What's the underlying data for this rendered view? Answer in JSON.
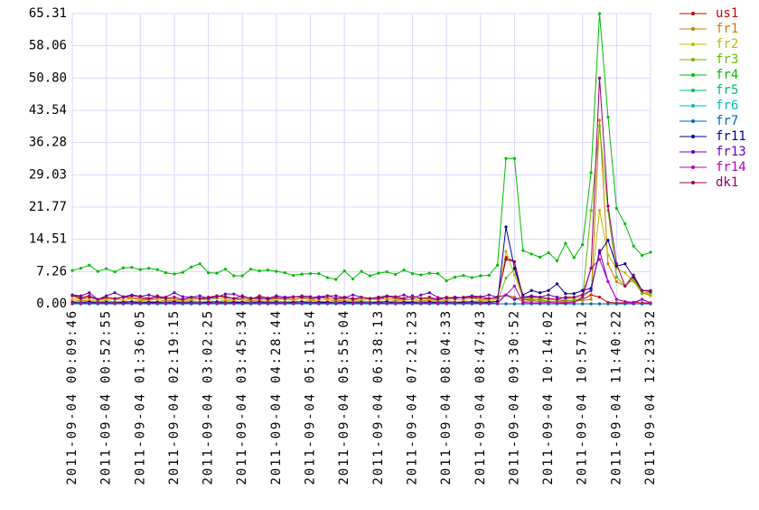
{
  "chart_data": {
    "type": "line",
    "legend": "right",
    "grid": true,
    "grid_color": "#d8d8ff",
    "x": [
      "2011-09-04 00:09:46",
      "2011-09-04 00:20:33",
      "2011-09-04 00:31:21",
      "2011-09-04 00:42:08",
      "2011-09-04 00:52:55",
      "2011-09-04 01:03:42",
      "2011-09-04 01:14:30",
      "2011-09-04 01:25:17",
      "2011-09-04 01:36:05",
      "2011-09-04 01:46:52",
      "2011-09-04 01:57:40",
      "2011-09-04 02:08:27",
      "2011-09-04 02:19:15",
      "2011-09-04 02:30:02",
      "2011-09-04 02:40:50",
      "2011-09-04 02:51:37",
      "2011-09-04 03:02:25",
      "2011-09-04 03:13:12",
      "2011-09-04 03:24:00",
      "2011-09-04 03:34:47",
      "2011-09-04 03:45:34",
      "2011-09-04 03:56:21",
      "2011-09-04 04:07:09",
      "2011-09-04 04:17:56",
      "2011-09-04 04:28:44",
      "2011-09-04 04:39:31",
      "2011-09-04 04:50:19",
      "2011-09-04 05:01:06",
      "2011-09-04 05:11:54",
      "2011-09-04 05:22:41",
      "2011-09-04 05:33:29",
      "2011-09-04 05:44:16",
      "2011-09-04 05:55:04",
      "2011-09-04 06:05:51",
      "2011-09-04 06:16:39",
      "2011-09-04 06:27:26",
      "2011-09-04 06:38:13",
      "2011-09-04 06:49:00",
      "2011-09-04 06:59:48",
      "2011-09-04 07:10:35",
      "2011-09-04 07:21:23",
      "2011-09-04 07:32:10",
      "2011-09-04 07:42:58",
      "2011-09-04 07:53:45",
      "2011-09-04 08:04:33",
      "2011-09-04 08:15:20",
      "2011-09-04 08:26:08",
      "2011-09-04 08:36:55",
      "2011-09-04 08:47:43",
      "2011-09-04 08:58:30",
      "2011-09-04 09:09:18",
      "2011-09-04 09:20:05",
      "2011-09-04 09:30:52",
      "2011-09-04 09:41:39",
      "2011-09-04 09:52:27",
      "2011-09-04 10:03:14",
      "2011-09-04 10:14:02",
      "2011-09-04 10:24:49",
      "2011-09-04 10:35:37",
      "2011-09-04 10:46:24",
      "2011-09-04 10:57:12",
      "2011-09-04 11:07:59",
      "2011-09-04 11:18:47",
      "2011-09-04 11:29:34",
      "2011-09-04 11:40:22",
      "2011-09-04 11:51:09",
      "2011-09-04 12:01:57",
      "2011-09-04 12:12:44",
      "2011-09-04 12:23:32"
    ],
    "xlim": [
      "2011-09-04 00:09:46",
      "2011-09-04 12:23:32"
    ],
    "xticks": [
      "2011-09-04 00:09:46",
      "2011-09-04 00:52:55",
      "2011-09-04 01:36:05",
      "2011-09-04 02:19:15",
      "2011-09-04 03:02:25",
      "2011-09-04 03:45:34",
      "2011-09-04 04:28:44",
      "2011-09-04 05:11:54",
      "2011-09-04 05:55:04",
      "2011-09-04 06:38:13",
      "2011-09-04 07:21:23",
      "2011-09-04 08:04:33",
      "2011-09-04 08:47:43",
      "2011-09-04 09:30:52",
      "2011-09-04 10:14:02",
      "2011-09-04 10:57:12",
      "2011-09-04 11:40:22",
      "2011-09-04 12:23:32"
    ],
    "ylim": [
      0,
      65.31
    ],
    "yticks": [
      {
        "value": 0,
        "label": "0.00"
      },
      7.26,
      14.51,
      21.77,
      29.03,
      36.28,
      43.54,
      {
        "value": 50.8,
        "label": "50.80"
      },
      58.06,
      65.31
    ],
    "series": [
      {
        "name": "us1",
        "color": "#cc0000",
        "values": [
          2.0,
          1.5,
          1.8,
          1.0,
          1.2,
          1.0,
          1.5,
          1.3,
          1.2,
          1.0,
          1.4,
          1.2,
          1.0,
          0.9,
          1.1,
          1.0,
          1.3,
          1.8,
          1.4,
          1.2,
          1.1,
          1.0,
          1.8,
          1.3,
          1.2,
          1.0,
          1.0,
          1.3,
          1.0,
          1.5,
          1.2,
          1.0,
          1.3,
          1.2,
          1.0,
          1.2,
          1.5,
          1.0,
          1.3,
          1.0,
          1.0,
          1.2,
          1.1,
          1.0,
          1.0,
          1.5,
          1.4,
          1.6,
          1.0,
          1.2,
          1.3,
          10.5,
          9.5,
          1.0,
          0.8,
          1.0,
          0.5,
          0.5,
          0.8,
          0.6,
          1.0,
          2.0,
          1.5,
          0.3,
          0.2,
          0.2,
          0.3,
          0.2,
          0.2
        ]
      },
      {
        "name": "fr1",
        "color": "#cc7a00",
        "values": [
          0.5,
          0.8,
          0.6,
          0.5,
          0.7,
          0.4,
          0.6,
          0.5,
          0.7,
          0.5,
          0.5,
          0.8,
          0.6,
          0.5,
          0.7,
          0.4,
          0.6,
          0.5,
          0.7,
          0.5,
          0.5,
          0.8,
          0.6,
          0.5,
          0.7,
          0.4,
          0.6,
          0.5,
          0.7,
          0.5,
          0.5,
          0.8,
          0.6,
          0.5,
          0.7,
          0.4,
          0.6,
          0.5,
          0.7,
          0.5,
          0.5,
          0.8,
          0.6,
          0.5,
          0.7,
          0.4,
          0.6,
          0.5,
          0.7,
          0.5,
          0.6,
          2.0,
          1.5,
          0.5,
          0.6,
          0.5,
          0.4,
          0.5,
          0.3,
          0.5,
          0.8,
          1.0,
          41.3,
          9.0,
          5.0,
          4.0,
          6.0,
          2.5,
          2.5
        ]
      },
      {
        "name": "fr2",
        "color": "#bbbb00",
        "values": [
          1.0,
          1.2,
          0.9,
          0.8,
          1.1,
          1.0,
          0.9,
          1.2,
          1.0,
          0.8,
          1.0,
          1.2,
          0.9,
          0.8,
          1.1,
          1.0,
          0.9,
          1.2,
          1.0,
          0.8,
          1.0,
          1.2,
          0.9,
          0.8,
          1.1,
          1.0,
          0.9,
          1.2,
          1.0,
          0.8,
          1.0,
          1.2,
          0.9,
          0.8,
          1.1,
          1.0,
          0.9,
          1.2,
          1.0,
          0.8,
          1.0,
          1.2,
          0.9,
          0.8,
          1.1,
          1.0,
          0.9,
          1.2,
          1.0,
          0.8,
          1.0,
          11.8,
          6.5,
          1.5,
          1.2,
          1.3,
          1.0,
          0.9,
          1.0,
          1.2,
          1.5,
          3.0,
          21.0,
          11.0,
          8.0,
          7.0,
          5.0,
          2.5,
          1.8
        ]
      },
      {
        "name": "fr3",
        "color": "#66bb00",
        "values": [
          0.3,
          0.5,
          0.4,
          0.3,
          0.6,
          0.4,
          0.3,
          0.5,
          0.4,
          0.3,
          0.3,
          0.5,
          0.4,
          0.3,
          0.6,
          0.4,
          0.3,
          0.5,
          0.4,
          0.3,
          0.3,
          0.5,
          0.4,
          0.3,
          0.6,
          0.4,
          0.3,
          0.5,
          0.4,
          0.3,
          0.3,
          0.5,
          0.4,
          0.3,
          0.6,
          0.4,
          0.3,
          0.5,
          0.4,
          0.3,
          0.3,
          0.5,
          0.4,
          0.3,
          0.6,
          0.4,
          0.3,
          0.5,
          0.4,
          0.3,
          0.5,
          5.8,
          7.8,
          1.3,
          1.0,
          0.8,
          0.6,
          0.5,
          0.6,
          0.8,
          1.2,
          21.0,
          40.0,
          21.0,
          6.0,
          4.0,
          5.5,
          2.3,
          2.2
        ]
      },
      {
        "name": "fr4",
        "color": "#00bb00",
        "values": [
          7.5,
          8.0,
          8.7,
          7.3,
          7.9,
          7.2,
          8.1,
          8.2,
          7.7,
          8.0,
          7.7,
          7.0,
          6.7,
          7.1,
          8.3,
          9.0,
          7.0,
          6.9,
          7.8,
          6.3,
          6.3,
          7.8,
          7.4,
          7.6,
          7.3,
          7.0,
          6.4,
          6.7,
          6.8,
          6.8,
          5.9,
          5.5,
          7.4,
          5.6,
          7.3,
          6.3,
          6.9,
          7.2,
          6.6,
          7.6,
          6.8,
          6.5,
          6.9,
          6.8,
          5.2,
          6.0,
          6.4,
          5.9,
          6.3,
          6.4,
          8.7,
          32.7,
          32.7,
          12.0,
          11.2,
          10.5,
          11.5,
          9.7,
          13.6,
          10.4,
          13.3,
          29.5,
          65.3,
          42.0,
          21.5,
          18.0,
          13.0,
          10.9,
          11.6
        ]
      },
      {
        "name": "fr5",
        "color": "#00bb66",
        "values": [
          0,
          0,
          0,
          0,
          0,
          0,
          0,
          0,
          0,
          0,
          0,
          0,
          0,
          0,
          0,
          0,
          0,
          0,
          0,
          0,
          0,
          0,
          0,
          0,
          0,
          0,
          0,
          0,
          0,
          0,
          0,
          0,
          0,
          0,
          0,
          0,
          0,
          0,
          0,
          0,
          0,
          0,
          0,
          0,
          0,
          0,
          0,
          0,
          0,
          0,
          0,
          0,
          0,
          0,
          0,
          0,
          0,
          0,
          0,
          0,
          0,
          0,
          0,
          0,
          0,
          0,
          0,
          0,
          0
        ]
      },
      {
        "name": "fr6",
        "color": "#00bbbb",
        "values": [
          0,
          0,
          0,
          0,
          0,
          0,
          0,
          0,
          0,
          0,
          0,
          0,
          0,
          0,
          0,
          0,
          0,
          0,
          0,
          0,
          0,
          0,
          0,
          0,
          0,
          0,
          0,
          0,
          0,
          0,
          0,
          0,
          0,
          0,
          0,
          0,
          0,
          0,
          0,
          0,
          0,
          0,
          0,
          0,
          0,
          0,
          0,
          0,
          0,
          0,
          0,
          0,
          0,
          0,
          0,
          0,
          0,
          0,
          0,
          0,
          0,
          0,
          0,
          0,
          0,
          0,
          0,
          0,
          0
        ]
      },
      {
        "name": "fr7",
        "color": "#0066bb",
        "values": [
          0,
          0,
          0,
          0,
          0,
          0,
          0,
          0,
          0,
          0,
          0,
          0,
          0,
          0,
          0,
          0,
          0,
          0,
          0,
          0,
          0,
          0,
          0,
          0,
          0,
          0,
          0,
          0,
          0,
          0,
          0,
          0,
          0,
          0,
          0,
          0,
          0,
          0,
          0,
          0,
          0,
          0,
          0,
          0,
          0,
          0,
          0,
          0,
          0,
          0,
          0,
          0,
          0,
          0,
          0,
          0,
          0,
          0,
          0,
          0,
          0,
          0,
          0,
          0,
          0,
          0,
          0,
          0,
          0
        ]
      },
      {
        "name": "fr11",
        "color": "#000099",
        "values": [
          0.3,
          0.2,
          0.4,
          0.2,
          0.3,
          0.2,
          0.3,
          0.4,
          0.2,
          0.3,
          0.3,
          0.2,
          0.4,
          0.2,
          0.3,
          0.2,
          0.3,
          0.4,
          0.2,
          0.3,
          0.3,
          0.2,
          0.4,
          0.2,
          0.3,
          0.2,
          0.3,
          0.4,
          0.2,
          0.3,
          0.3,
          0.2,
          0.4,
          0.2,
          0.3,
          0.2,
          0.3,
          0.4,
          0.2,
          0.3,
          0.3,
          0.2,
          0.4,
          0.2,
          0.3,
          0.2,
          0.3,
          0.4,
          0.2,
          0.3,
          0.5,
          17.3,
          8.0,
          2.0,
          3.0,
          2.5,
          3.0,
          4.5,
          2.3,
          2.3,
          3.0,
          3.5,
          11.5,
          14.3,
          8.5,
          9.0,
          6.0,
          3.0,
          2.8
        ]
      },
      {
        "name": "fr13",
        "color": "#6600bb",
        "values": [
          2.0,
          1.8,
          2.5,
          1.0,
          1.8,
          2.5,
          1.6,
          2.0,
          1.7,
          2.0,
          1.6,
          1.5,
          2.5,
          1.6,
          1.5,
          1.8,
          1.2,
          1.5,
          2.2,
          2.2,
          1.5,
          1.3,
          1.2,
          1.2,
          1.8,
          1.5,
          1.6,
          1.5,
          1.4,
          1.6,
          1.8,
          1.8,
          1.4,
          2.0,
          1.5,
          1.2,
          1.2,
          1.6,
          1.5,
          2.0,
          1.2,
          2.0,
          2.5,
          1.4,
          1.3,
          1.5,
          1.3,
          1.5,
          1.5,
          2.0,
          1.5,
          2.0,
          1.0,
          1.5,
          1.8,
          1.5,
          2.0,
          1.5,
          1.3,
          1.5,
          2.0,
          3.0,
          12.0,
          5.0,
          1.0,
          0.5,
          0.3,
          1.0,
          0.2
        ]
      },
      {
        "name": "fr14",
        "color": "#bb00bb",
        "values": [
          0.1,
          0.1,
          0.1,
          0.1,
          0.1,
          0.1,
          0.1,
          0.1,
          0.1,
          0.1,
          0.1,
          0.1,
          0.1,
          0.1,
          0.1,
          0.1,
          0.1,
          0.1,
          0.1,
          0.1,
          0.1,
          0.1,
          0.1,
          0.1,
          0.1,
          0.1,
          0.1,
          0.1,
          0.1,
          0.1,
          0.1,
          0.1,
          0.1,
          0.1,
          0.1,
          0.1,
          0.1,
          0.1,
          0.1,
          0.1,
          0.1,
          0.1,
          0.1,
          0.1,
          0.1,
          0.1,
          0.1,
          0.1,
          0.1,
          0.1,
          0.1,
          2.0,
          4.0,
          0.3,
          0.2,
          0.2,
          0.3,
          0.2,
          0.2,
          0.3,
          1.5,
          8.0,
          10.0,
          5.0,
          1.0,
          0.5,
          0.1,
          1.0,
          0.2
        ]
      },
      {
        "name": "dk1",
        "color": "#990066",
        "values": [
          1.8,
          1.2,
          1.5,
          1.0,
          1.5,
          1.2,
          1.5,
          1.8,
          1.6,
          1.2,
          1.8,
          1.2,
          1.5,
          1.0,
          1.5,
          1.2,
          1.5,
          1.8,
          1.6,
          1.2,
          1.8,
          1.2,
          1.5,
          1.0,
          1.5,
          1.2,
          1.5,
          1.8,
          1.6,
          1.2,
          1.8,
          1.2,
          1.5,
          1.0,
          1.5,
          1.2,
          1.5,
          1.8,
          1.6,
          1.2,
          1.8,
          1.2,
          1.5,
          1.0,
          1.5,
          1.2,
          1.5,
          1.8,
          1.6,
          1.2,
          1.5,
          10.0,
          9.5,
          1.5,
          1.5,
          1.5,
          1.2,
          1.0,
          1.5,
          1.5,
          2.0,
          8.0,
          50.8,
          22.0,
          9.0,
          4.0,
          6.5,
          3.0,
          3.0
        ]
      }
    ]
  }
}
